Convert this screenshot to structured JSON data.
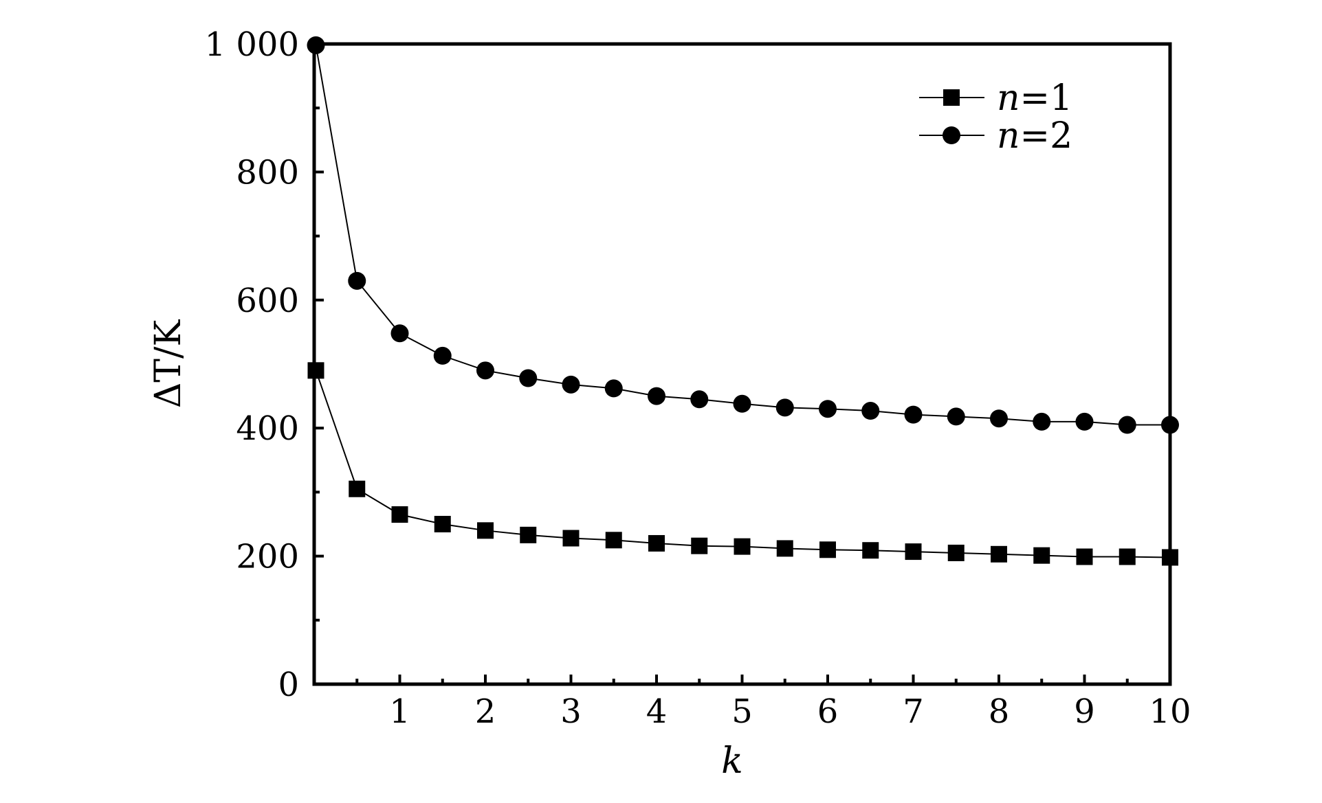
{
  "chart_data": {
    "type": "line",
    "title": "",
    "xlabel": "k",
    "ylabel": "ΔT/K",
    "xlim": [
      0,
      10
    ],
    "ylim": [
      0,
      1000
    ],
    "x_ticks": [
      1,
      2,
      3,
      4,
      5,
      6,
      7,
      8,
      9,
      10
    ],
    "x_tick_labels": [
      "1",
      "2",
      "3",
      "4",
      "5",
      "6",
      "7",
      "8",
      "9",
      "10"
    ],
    "y_ticks": [
      0,
      200,
      400,
      600,
      800,
      1000
    ],
    "y_tick_labels": [
      "0",
      "200",
      "400",
      "600",
      "800",
      "1 000"
    ],
    "grid": false,
    "legend_position": "top-right",
    "x": [
      0.02,
      0.5,
      1,
      1.5,
      2,
      2.5,
      3,
      3.5,
      4,
      4.5,
      5,
      5.5,
      6,
      6.5,
      7,
      7.5,
      8,
      8.5,
      9,
      9.5,
      10
    ],
    "series": [
      {
        "name": "n=1",
        "name_var": "n",
        "name_rest": "=1",
        "marker": "square",
        "values": [
          490,
          305,
          265,
          250,
          240,
          233,
          228,
          225,
          220,
          216,
          215,
          212,
          210,
          209,
          207,
          205,
          203,
          201,
          199,
          199,
          198
        ]
      },
      {
        "name": "n=2",
        "name_var": "n",
        "name_rest": "=2",
        "marker": "circle",
        "values": [
          998,
          630,
          548,
          513,
          490,
          478,
          468,
          462,
          450,
          445,
          438,
          432,
          430,
          427,
          421,
          418,
          415,
          410,
          410,
          405,
          405
        ]
      }
    ]
  }
}
